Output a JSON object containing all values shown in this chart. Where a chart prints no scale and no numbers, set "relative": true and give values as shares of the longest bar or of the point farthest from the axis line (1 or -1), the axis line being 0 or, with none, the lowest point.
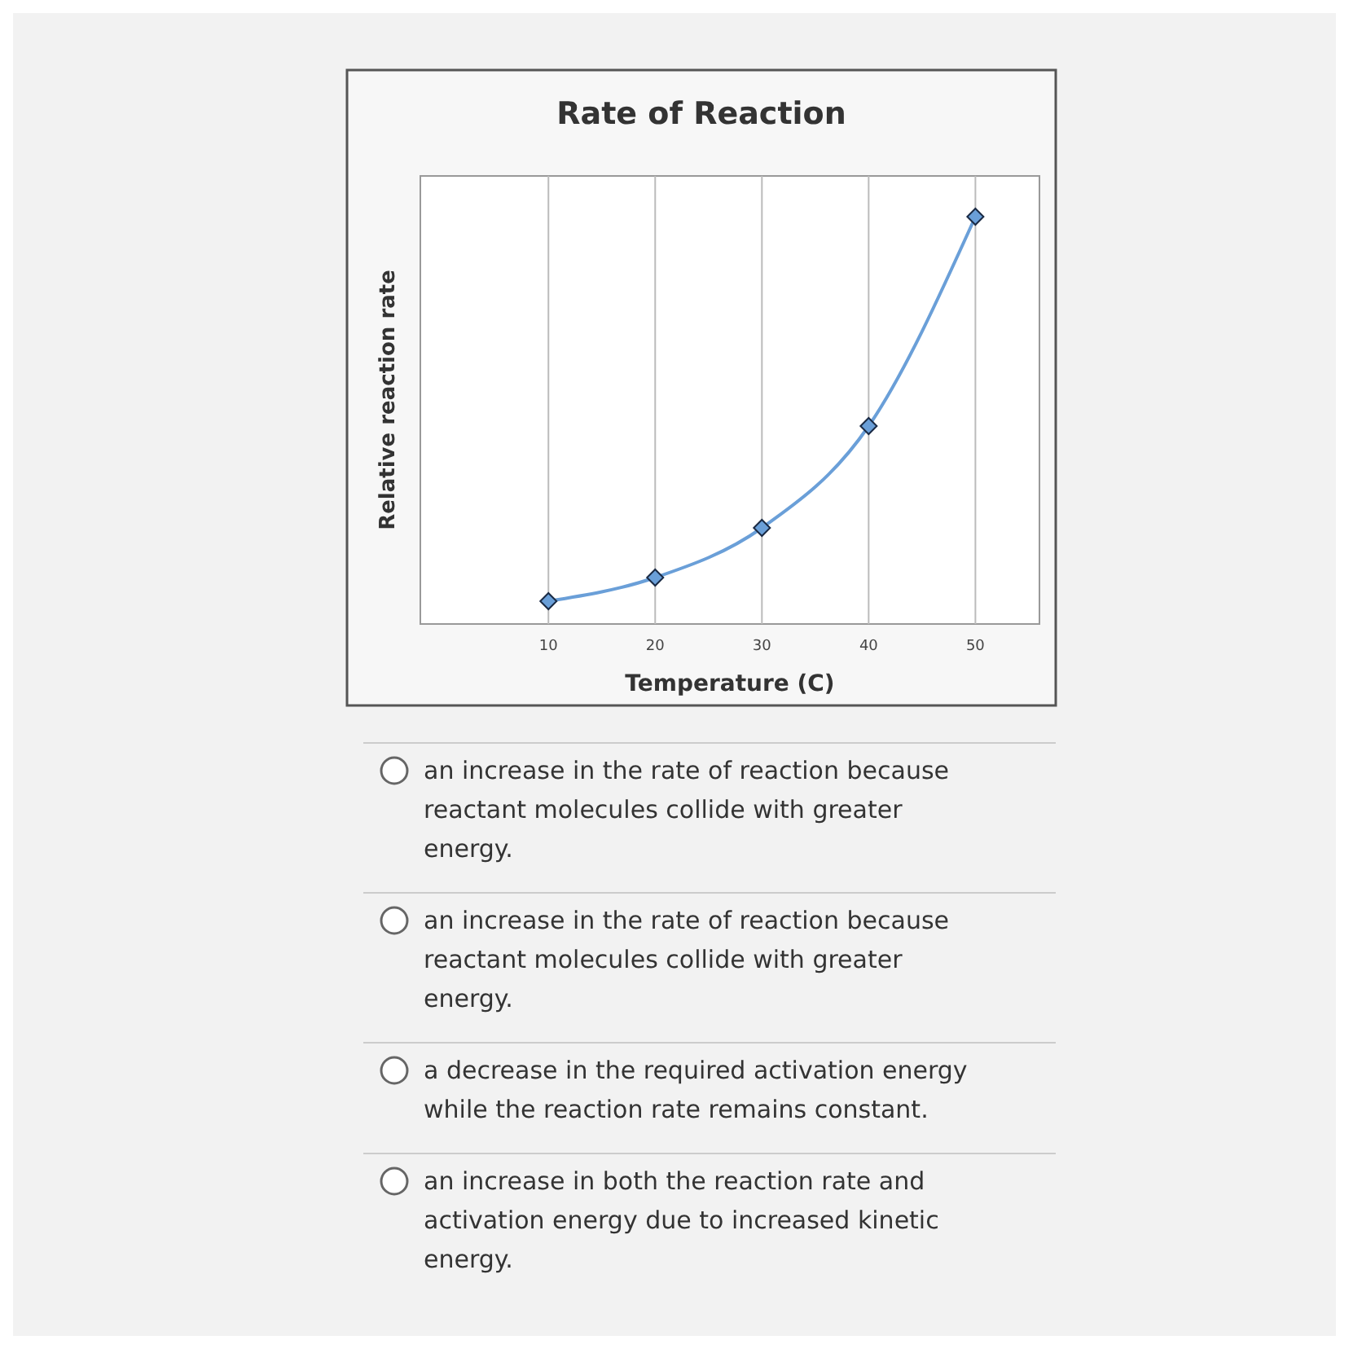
{
  "chart_data": {
    "type": "line",
    "title": "Rate of Reaction",
    "xlabel": "Temperature (C)",
    "ylabel": "Relative reaction rate",
    "x": [
      10,
      20,
      30,
      40,
      50
    ],
    "series": [
      {
        "color": "#6a9fd8",
        "values": [
          0.056,
          0.114,
          0.236,
          0.486,
          1
        ]
      }
    ],
    "relative": true,
    "xlim": [
      -2,
      56
    ],
    "xticks": [
      10,
      20,
      30,
      40,
      50
    ],
    "grid": "x",
    "marker": "diamond",
    "line_style": "solid",
    "annotations": [
      "an increase in the rate of reaction because reactant molecules collide with greater energy.",
      "an increase in the rate of reaction because reactant molecules collide with greater energy.",
      "a decrease in the required activation energy while the reaction rate remains constant.",
      "an increase in both the reaction rate and activation energy due to increased kinetic energy."
    ]
  }
}
